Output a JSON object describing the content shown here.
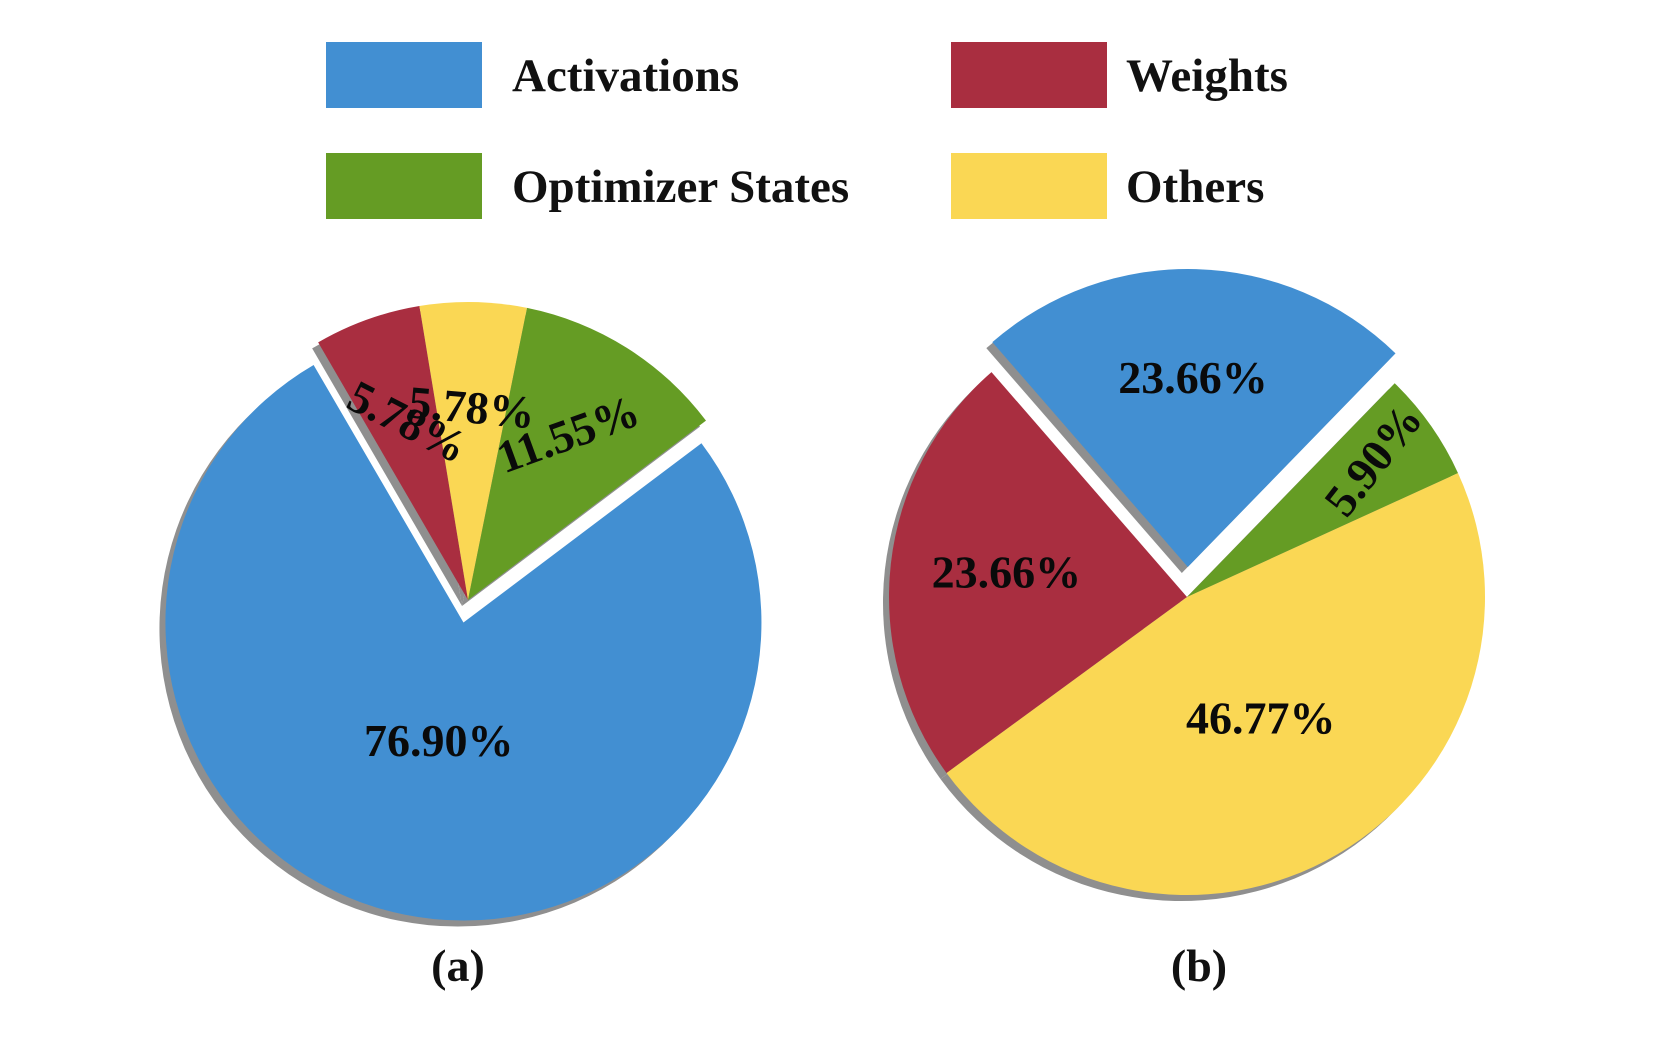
{
  "legend": [
    {
      "key": "activations",
      "label": "Activations",
      "color": "#428fd2"
    },
    {
      "key": "weights",
      "label": "Weights",
      "color": "#a92e40"
    },
    {
      "key": "optimizer",
      "label": "Optimizer States",
      "color": "#659c24"
    },
    {
      "key": "others",
      "label": "Others",
      "color": "#fad754"
    }
  ],
  "chart_data": [
    {
      "type": "pie",
      "caption": "(a)",
      "slices": [
        {
          "key": "activations",
          "label": "Activations",
          "value": 76.9,
          "text": "76.90%",
          "color": "#428fd2",
          "exploded": true
        },
        {
          "key": "weights",
          "label": "Weights",
          "value": 5.78,
          "text": "5.78%",
          "color": "#a92e40",
          "exploded": false
        },
        {
          "key": "others",
          "label": "Others",
          "value": 5.78,
          "text": "5.78%",
          "color": "#fad754",
          "exploded": false
        },
        {
          "key": "optimizer",
          "label": "Optimizer States",
          "value": 11.55,
          "text": "11.55%",
          "color": "#659c24",
          "exploded": false
        }
      ]
    },
    {
      "type": "pie",
      "caption": "(b)",
      "slices": [
        {
          "key": "activations",
          "label": "Activations",
          "value": 23.66,
          "text": "23.66%",
          "color": "#428fd2",
          "exploded": true
        },
        {
          "key": "optimizer",
          "label": "Optimizer States",
          "value": 5.9,
          "text": "5.90%",
          "color": "#659c24",
          "exploded": false
        },
        {
          "key": "others",
          "label": "Others",
          "value": 46.77,
          "text": "46.77%",
          "color": "#fad754",
          "exploded": false
        },
        {
          "key": "weights",
          "label": "Weights",
          "value": 23.66,
          "text": "23.66%",
          "color": "#a92e40",
          "exploded": false
        }
      ]
    }
  ]
}
